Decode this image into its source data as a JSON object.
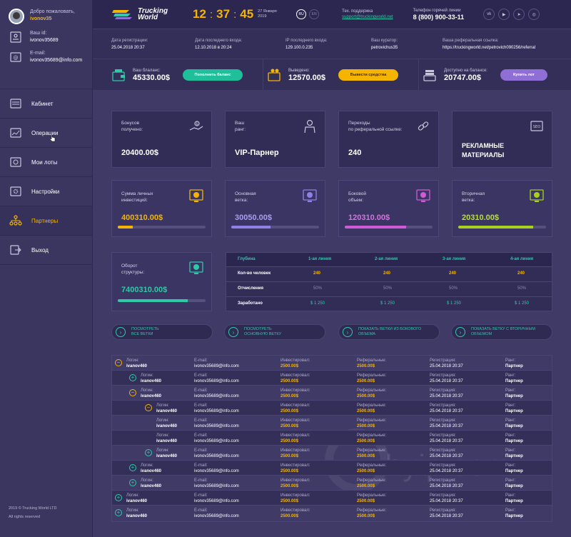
{
  "sidebar": {
    "welcome": "Добро пожаловать,",
    "username": "ivonov35",
    "id_label": "Ваш id:",
    "id_value": "ivonov35689",
    "email_label": "E-mail:",
    "email_value": "ivonov35689@info.com",
    "nav": [
      {
        "label": "Кабинет",
        "icon": "cabinet-icon"
      },
      {
        "label": "Операции",
        "icon": "operations-icon"
      },
      {
        "label": "Мои лоты",
        "icon": "lots-icon"
      },
      {
        "label": "Настройки",
        "icon": "settings-icon"
      },
      {
        "label": "Партнеры",
        "icon": "partners-icon",
        "active": true
      },
      {
        "label": "Выход",
        "icon": "exit-icon"
      }
    ],
    "footer_copy": "2019 © Trucking World LTD",
    "footer_rights": "All rights reserved"
  },
  "header": {
    "logo_line1": "Trucking",
    "logo_line2": "World",
    "clock_h": "12",
    "clock_m": "37",
    "clock_s": "45",
    "date_line1": "27 Января",
    "date_line2": "2019",
    "lang_active": "RU",
    "lang_other": "EN",
    "support_label": "Тех. поддержка",
    "support_email": "support@truckingworld.net",
    "phone_label": "Телефон горячей линии",
    "phone": "8 (800) 900-33-11",
    "socials": [
      "vk-icon",
      "youtube-icon",
      "telegram-icon",
      "instagram-icon"
    ]
  },
  "info": {
    "reg_label": "Дата регистрации:",
    "reg_value": "25.04.2018 20:37",
    "last_label": "Дата последнего входа:",
    "last_value": "12.10.2018 в 20:24",
    "ip_label": "IP последнего входа:",
    "ip_value": "129.100.0.235",
    "curator_label": "Ваш куратор:",
    "curator_value": "petrovichus35",
    "ref_label": "Ваша реферальная ссылка:",
    "ref_value": "https://truckingworld.net/petrovich090256/referral"
  },
  "balances": [
    {
      "label": "Ваш блаланс:",
      "value": "45330.00$",
      "button": "Пополнить баланс",
      "color": "#1fbf9a"
    },
    {
      "label": "Выведено:",
      "value": "12570.00$",
      "button": "Вывести средства",
      "color": "#f5b400"
    },
    {
      "label": "Доступно на балансе:",
      "value": "20747.00$",
      "button": "Купить лот",
      "color": "#8f6ed5"
    }
  ],
  "stats_top": [
    {
      "label1": "Бонусов",
      "label2": "получено:",
      "value": "20400.00$",
      "icon": "bonus-hand-icon"
    },
    {
      "label1": "Ваш",
      "label2": "ранг:",
      "value": "VIP-Парнер",
      "icon": "rank-person-icon"
    },
    {
      "label1": "Переходы",
      "label2": "по реферальной ссылке:",
      "value": "240",
      "icon": "link-icon"
    },
    {
      "label1": "",
      "label2": "",
      "value": "РЕКЛАМНЫЕ МАТЕРИАЛЫ",
      "icon": "ads-icon"
    }
  ],
  "stats_mid": [
    {
      "label1": "Сумма личных",
      "label2": "инвестиций:",
      "value": "400310.00$",
      "color": "#f5b400",
      "progress": 0.17
    },
    {
      "label1": "Основная",
      "label2": "ветка:",
      "value": "30050.00$",
      "color": "#8f80e8",
      "progress": 0.45
    },
    {
      "label1": "Боковой",
      "label2": "объем:",
      "value": "120310.00$",
      "color": "#d05ad8",
      "progress": 0.7
    },
    {
      "label1": "Вторичная",
      "label2": "ветка:",
      "value": "20310.00$",
      "color": "#a8d020",
      "progress": 0.85
    }
  ],
  "turnover": {
    "label1": "Оборот",
    "label2": "структуры:",
    "value": "7400310.00$",
    "color": "#2ec9a7",
    "progress": 0.8
  },
  "depth_table": {
    "headers": [
      "Глубина",
      "1-ая линия",
      "2-ая линия",
      "3-ая линия",
      "4-ая линия"
    ],
    "rows": [
      {
        "name": "Кол-во человек",
        "values": [
          "240",
          "240",
          "240",
          "240"
        ]
      },
      {
        "name": "Отчисления",
        "values": [
          "50%",
          "50%",
          "50%",
          "50%"
        ]
      },
      {
        "name": "Заработано",
        "values": [
          "$ 1 250",
          "$ 1 250",
          "$ 1 250",
          "$ 1 250"
        ]
      }
    ]
  },
  "branch_buttons": [
    {
      "line1": "посмотреть",
      "line2": "все ветки"
    },
    {
      "line1": "посмотреть",
      "line2": "основную ветку"
    },
    {
      "line1": "показать ветки из бокового",
      "line2": "объема"
    },
    {
      "line1": "показать ветку с вторичным",
      "line2": "объемом"
    }
  ],
  "tree_labels": {
    "login": "Логин:",
    "email": "E-mail:",
    "invested": "Инвестировал:",
    "referral": "Реферальные:",
    "registration": "Регистрация:",
    "rank": "Ранг:"
  },
  "tree_rows": [
    {
      "login": "ivanov460",
      "email": "ivonov35689@info.com",
      "invested": "2500.00$",
      "referral": "2500.00$",
      "reg": "25.04.2018 20:37",
      "rank": "Партнер",
      "toggle": "-"
    },
    {
      "login": "ivanov460",
      "email": "ivonov35689@info.com",
      "invested": "2500.00$",
      "referral": "2500.00$",
      "reg": "25.04.2018 20:37",
      "rank": "Партнер",
      "toggle": "+"
    },
    {
      "login": "ivanov460",
      "email": "ivonov35689@info.com",
      "invested": "2500.00$",
      "referral": "2500.00$",
      "reg": "25.04.2018 20:37",
      "rank": "Партнер",
      "toggle": "-"
    },
    {
      "login": "ivanov460",
      "email": "ivonov35689@info.com",
      "invested": "2500.00$",
      "referral": "2500.00$",
      "reg": "25.04.2018 20:37",
      "rank": "Партнер",
      "toggle": "-"
    },
    {
      "login": "ivanov460",
      "email": "ivonov35689@info.com",
      "invested": "2500.00$",
      "referral": "2500.00$",
      "reg": "25.04.2018 20:37",
      "rank": "Партнер",
      "toggle": ""
    },
    {
      "login": "ivanov460",
      "email": "ivonov35689@info.com",
      "invested": "2500.00$",
      "referral": "2500.00$",
      "reg": "25.04.2018 20:37",
      "rank": "Партнер",
      "toggle": ""
    },
    {
      "login": "ivanov460",
      "email": "ivonov35689@info.com",
      "invested": "2500.00$",
      "referral": "2500.00$",
      "reg": "25.04.2018 20:37",
      "rank": "Партнер",
      "toggle": "+"
    },
    {
      "login": "ivanov460",
      "email": "ivonov35689@info.com",
      "invested": "2500.00$",
      "referral": "2500.00$",
      "reg": "25.04.2018 20:37",
      "rank": "Партнер",
      "toggle": "+"
    },
    {
      "login": "ivanov460",
      "email": "ivonov35689@info.com",
      "invested": "2500.00$",
      "referral": "2500.00$",
      "reg": "25.04.2018 20:37",
      "rank": "Партнер",
      "toggle": "+"
    },
    {
      "login": "ivanov460",
      "email": "ivonov35689@info.com",
      "invested": "2500.00$",
      "referral": "2500.00$",
      "reg": "25.04.2018 20:37",
      "rank": "Партнер",
      "toggle": "+"
    },
    {
      "login": "ivanov460",
      "email": "ivonov35689@info.com",
      "invested": "2500.00$",
      "referral": "2500.00$",
      "reg": "25.04.2018 20:37",
      "rank": "Партнер",
      "toggle": "+"
    }
  ],
  "watermark": "hyip.com"
}
